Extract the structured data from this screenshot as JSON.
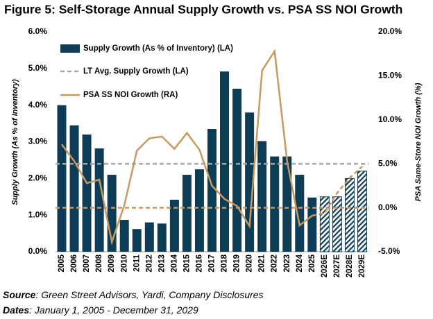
{
  "chart_data": {
    "type": "bar",
    "title": "Figure 5: Self-Storage Annual Supply Growth vs. PSA SS NOI Growth",
    "y_label": "Supply Growth (As % of Inventory)",
    "y2_label": "PSA Same-Store NOI Growth (%)",
    "categories": [
      "2005",
      "2006",
      "2007",
      "2008",
      "2009",
      "2010",
      "2011",
      "2012",
      "2013",
      "2014",
      "2015",
      "2016",
      "2017",
      "2018",
      "2019",
      "2020",
      "2021",
      "2022",
      "2023",
      "2024",
      "2025",
      "2026E",
      "2027E",
      "2028E",
      "2029E"
    ],
    "forecast_from_index": 21,
    "series": [
      {
        "name": "Supply Growth (As % of Inventory) (LA)",
        "type": "bar",
        "color": "#0d3d56",
        "values": [
          4.0,
          3.45,
          3.2,
          2.82,
          2.1,
          0.87,
          0.62,
          0.8,
          0.77,
          1.42,
          2.1,
          2.25,
          3.35,
          4.92,
          4.45,
          3.8,
          3.02,
          2.6,
          2.6,
          2.1,
          1.48,
          1.5,
          1.5,
          2.0,
          2.2
        ]
      },
      {
        "name": "PSA SS NOI Growth (RA)",
        "type": "line",
        "axis": "y2",
        "color": "#c8995e",
        "values": [
          7.2,
          5.3,
          2.8,
          3.2,
          -3.9,
          0.3,
          6.5,
          7.9,
          8.1,
          6.7,
          8.5,
          6.6,
          2.5,
          1.0,
          0.2,
          -2.1,
          15.6,
          17.8,
          5.3,
          -2.0,
          -0.9,
          -0.6,
          1.7,
          3.4,
          4.7
        ]
      }
    ],
    "reference_lines": [
      {
        "name": "LT Avg. Supply Growth (LA)",
        "value": 2.4,
        "axis": "y",
        "color": "#a6a6a6"
      },
      {
        "value": 0,
        "axis": "y2",
        "color": "#c8995e"
      }
    ],
    "ylim": [
      0,
      6
    ],
    "yticks": [
      {
        "value": 0,
        "label": "0.0%"
      },
      {
        "value": 1,
        "label": "1.0%"
      },
      {
        "value": 2,
        "label": "2.0%"
      },
      {
        "value": 3,
        "label": "3.0%"
      },
      {
        "value": 4,
        "label": "4.0%"
      },
      {
        "value": 5,
        "label": "5.0%"
      },
      {
        "value": 6,
        "label": "6.0%"
      }
    ],
    "y2lim": [
      -5,
      20
    ],
    "y2ticks": [
      {
        "value": -5,
        "label": "-5.0%"
      },
      {
        "value": 0,
        "label": "0.0%"
      },
      {
        "value": 5,
        "label": "5.0%"
      },
      {
        "value": 10,
        "label": "10.0%"
      },
      {
        "value": 15,
        "label": "15.0%"
      },
      {
        "value": 20,
        "label": "20.0%"
      }
    ],
    "source_label": "Source",
    "source_text": ": Green Street Advisors, Yardi, Company Disclosures",
    "dates_label": "Dates",
    "dates_text": ": January 1, 2005 - December 31, 2029"
  }
}
